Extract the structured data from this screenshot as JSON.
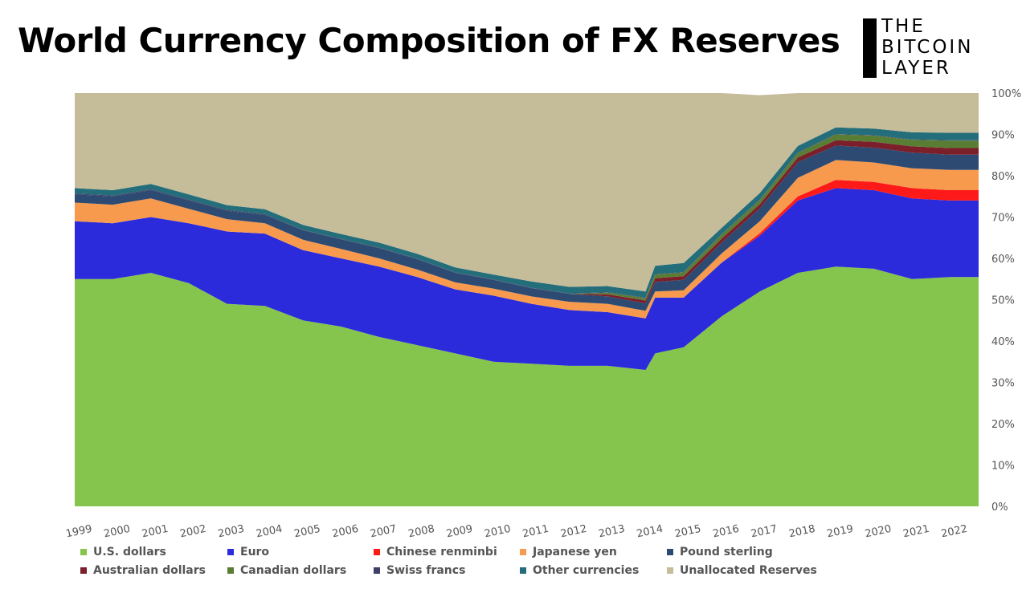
{
  "header": {
    "title": "World Currency Composition of FX Reserves"
  },
  "logo": {
    "lines": [
      "THE",
      "BITCOIN",
      "LAYER"
    ],
    "icon": "bitcoin-layer-logo"
  },
  "chart_data": {
    "type": "area",
    "stacked": true,
    "title": "World Currency Composition of FX Reserves",
    "xlabel": "",
    "ylabel": "",
    "ylim": [
      0,
      100
    ],
    "y_ticks": [
      "0%",
      "10%",
      "20%",
      "30%",
      "40%",
      "50%",
      "60%",
      "70%",
      "80%",
      "90%",
      "100%"
    ],
    "x_tick_labels": [
      "1999",
      "2000",
      "2001",
      "2002",
      "2003",
      "2004",
      "2005",
      "2006",
      "2007",
      "2008",
      "2009",
      "2010",
      "2011",
      "2012",
      "2013",
      "2014",
      "2015",
      "2016",
      "2017",
      "2018",
      "2019",
      "2020",
      "2021",
      "2022"
    ],
    "x": [
      1999,
      2000,
      2001,
      2002,
      2003,
      2004,
      2005,
      2006,
      2007,
      2008,
      2009,
      2010,
      2011,
      2012,
      2013,
      2014,
      2014.25,
      2015,
      2016,
      2017,
      2018,
      2019,
      2020,
      2021,
      2022
    ],
    "legend_position": "bottom",
    "series": [
      {
        "name": "U.S. dollars",
        "color": "#86c54d",
        "values": [
          55,
          55,
          56.5,
          54,
          49,
          48.5,
          45,
          43.5,
          41,
          39,
          37,
          35,
          34.5,
          34,
          34,
          33,
          37,
          38.5,
          46,
          52,
          56.5,
          58,
          57.5,
          55,
          55.5
        ]
      },
      {
        "name": "Euro",
        "color": "#2b2bdc",
        "values": [
          14,
          13.5,
          13.5,
          14.5,
          17.5,
          17.5,
          17,
          16.5,
          17,
          16.5,
          15.5,
          16,
          14.5,
          13.5,
          13,
          12.5,
          13.5,
          12,
          13,
          13.5,
          17.5,
          19,
          19,
          19.5,
          18.5
        ]
      },
      {
        "name": "Chinese renminbi",
        "color": "#ff1a1a",
        "values": [
          0,
          0,
          0,
          0,
          0,
          0,
          0,
          0,
          0,
          0,
          0,
          0,
          0,
          0,
          0,
          0,
          0,
          0,
          0,
          0.6,
          1,
          2,
          2,
          2.5,
          2.5
        ]
      },
      {
        "name": "Japanese yen",
        "color": "#f79a4e",
        "values": [
          4.5,
          4.5,
          4.5,
          3.5,
          3,
          2.5,
          2.5,
          2.3,
          2,
          1.8,
          1.7,
          1.7,
          1.8,
          2,
          2,
          1.8,
          1.5,
          1.8,
          2.2,
          2.9,
          4.5,
          4.8,
          4.7,
          4.8,
          4.9
        ]
      },
      {
        "name": "Pound sterling",
        "color": "#2d4a73",
        "values": [
          2,
          2,
          2,
          2,
          2,
          2,
          2.3,
          2.3,
          2.5,
          2.5,
          2.3,
          2.1,
          2,
          1.9,
          1.8,
          1.8,
          2.3,
          2.5,
          2.6,
          3.1,
          3.8,
          3.5,
          3.6,
          3.8,
          3.7
        ]
      },
      {
        "name": "Australian dollars",
        "color": "#7b1f2a",
        "values": [
          0,
          0,
          0,
          0,
          0,
          0,
          0,
          0,
          0,
          0,
          0,
          0,
          0,
          0,
          0.5,
          0.7,
          0.9,
          0.9,
          1,
          1,
          1.1,
          1.3,
          1.4,
          1.5,
          1.6
        ]
      },
      {
        "name": "Canadian dollars",
        "color": "#5a7d34",
        "values": [
          0,
          0,
          0,
          0,
          0,
          0,
          0,
          0,
          0,
          0,
          0,
          0,
          0,
          0,
          0.4,
          0.6,
          0.9,
          0.9,
          1,
          1,
          1.1,
          1.4,
          1.5,
          1.6,
          1.8
        ]
      },
      {
        "name": "Swiss francs",
        "color": "#3e3e66",
        "values": [
          0.2,
          0.2,
          0.2,
          0.2,
          0.2,
          0.2,
          0.1,
          0.1,
          0.1,
          0.1,
          0.1,
          0.1,
          0.1,
          0.1,
          0.1,
          0.1,
          0.1,
          0.1,
          0.1,
          0.1,
          0.1,
          0.1,
          0.1,
          0.1,
          0.1
        ]
      },
      {
        "name": "Other currencies",
        "color": "#236e7a",
        "values": [
          1.3,
          1.3,
          1.3,
          1.3,
          1.2,
          1.2,
          1.2,
          1.2,
          1.2,
          1.2,
          1.2,
          1.2,
          1.5,
          1.6,
          1.5,
          1.5,
          2,
          2.2,
          1.5,
          1.6,
          1.6,
          1.6,
          1.6,
          1.7,
          1.8
        ]
      },
      {
        "name": "Unallocated Reserves",
        "color": "#c5bc9a",
        "values": [
          23,
          23.5,
          22,
          24.5,
          27.1,
          28.1,
          31.9,
          34.1,
          36.2,
          38.9,
          42.2,
          43.9,
          45.6,
          46.9,
          46.7,
          48,
          41.8,
          41.1,
          32.6,
          23.7,
          12.8,
          8.3,
          8.6,
          9.5,
          9.6
        ]
      }
    ]
  }
}
